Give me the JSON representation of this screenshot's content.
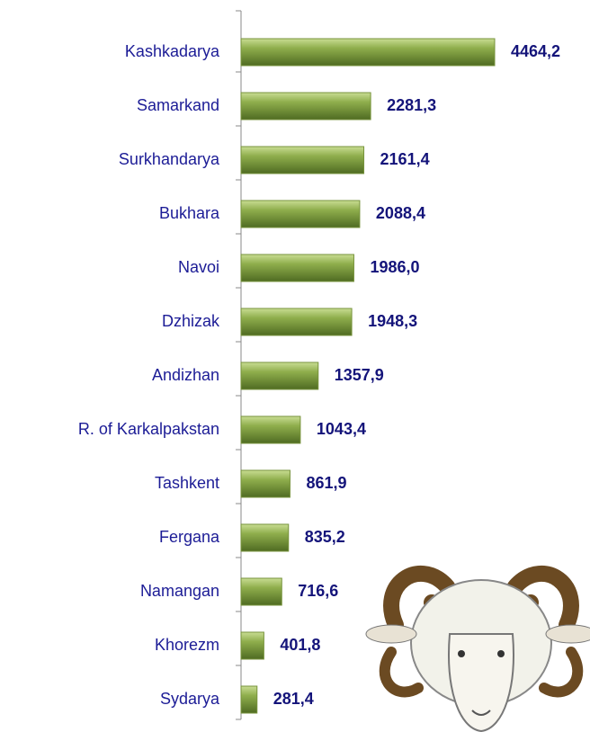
{
  "chart_data": {
    "type": "bar",
    "orientation": "horizontal",
    "color": "#77933c",
    "categories": [
      "Kashkadarya",
      "Samarkand",
      "Surkhandarya",
      "Bukhara",
      "Navoi",
      "Dzhizak",
      "Andizhan",
      "R. of Karkalpakstan",
      "Tashkent",
      "Fergana",
      "Namangan",
      "Khorezm",
      "Sydarya"
    ],
    "values": [
      4464.2,
      2281.3,
      2161.4,
      2088.4,
      1986.0,
      1948.3,
      1357.9,
      1043.4,
      861.9,
      835.2,
      716.6,
      401.8,
      281.4
    ],
    "value_labels": [
      "4464,2",
      "2281,3",
      "2161,4",
      "2088,4",
      "1986,0",
      "1948,3",
      "1357,9",
      "1043,4",
      "861,9",
      "835,2",
      "716,6",
      "401,8",
      "281,4"
    ]
  }
}
